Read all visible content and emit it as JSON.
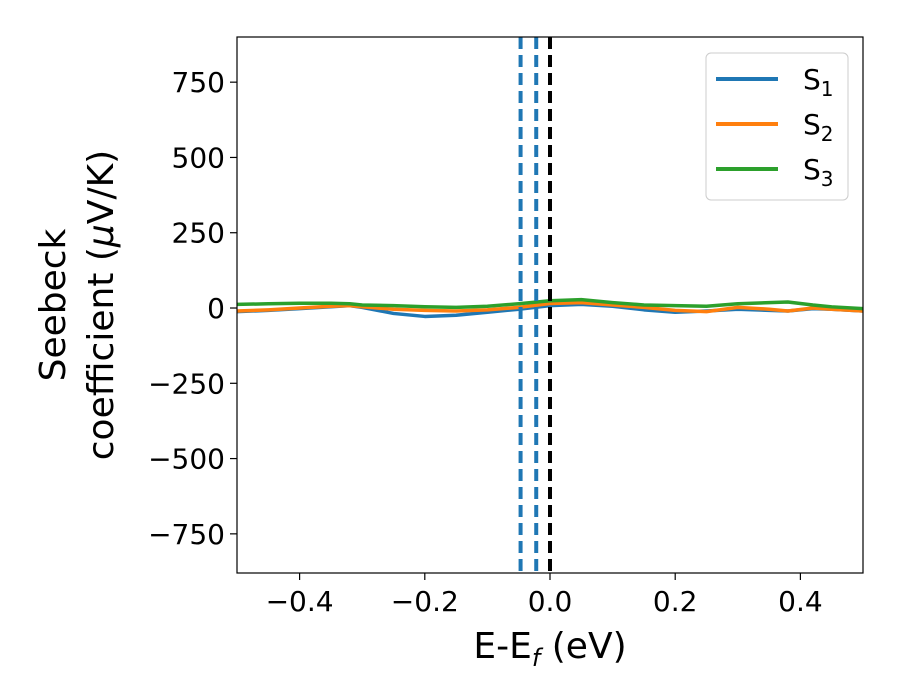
{
  "chart_data": {
    "type": "line",
    "xlabel": {
      "main": "E-E",
      "sub": "f",
      "tail": " (eV)"
    },
    "ylabel": {
      "line1": "Seebeck",
      "line2_text": "coefficient  (",
      "line2_mu": "μ",
      "line2_tail": "V/K)"
    },
    "xlim": [
      -0.5,
      0.5
    ],
    "ylim": [
      -880,
      900
    ],
    "xticks": [
      -0.4,
      -0.2,
      0.0,
      0.2,
      0.4
    ],
    "xtick_labels": [
      "−0.4",
      "−0.2",
      "0.0",
      "0.2",
      "0.4"
    ],
    "yticks": [
      -750,
      -500,
      -250,
      0,
      250,
      500,
      750
    ],
    "ytick_labels": [
      "−750",
      "−500",
      "−250",
      "0",
      "250",
      "500",
      "750"
    ],
    "grid": false,
    "legend_position": "top-right",
    "series": [
      {
        "name": "S",
        "sub": "1",
        "color": "#1f77b4",
        "x": [
          -0.5,
          -0.45,
          -0.4,
          -0.35,
          -0.32,
          -0.3,
          -0.25,
          -0.2,
          -0.15,
          -0.1,
          -0.05,
          0.0,
          0.05,
          0.1,
          0.15,
          0.2,
          0.25,
          0.3,
          0.35,
          0.38,
          0.42,
          0.45,
          0.5
        ],
        "y": [
          -12,
          -8,
          -2,
          4,
          8,
          2,
          -18,
          -28,
          -24,
          -14,
          -4,
          8,
          12,
          6,
          -6,
          -14,
          -10,
          -4,
          -8,
          -10,
          -2,
          -4,
          -10
        ]
      },
      {
        "name": "S",
        "sub": "2",
        "color": "#ff7f0e",
        "x": [
          -0.5,
          -0.45,
          -0.4,
          -0.35,
          -0.32,
          -0.3,
          -0.25,
          -0.2,
          -0.15,
          -0.1,
          -0.05,
          0.0,
          0.05,
          0.1,
          0.15,
          0.2,
          0.25,
          0.3,
          0.35,
          0.38,
          0.42,
          0.45,
          0.5
        ],
        "y": [
          -10,
          -6,
          0,
          6,
          8,
          4,
          -4,
          -8,
          -10,
          -6,
          2,
          15,
          18,
          10,
          2,
          -8,
          -12,
          2,
          -4,
          -10,
          0,
          -4,
          -10
        ]
      },
      {
        "name": "S",
        "sub": "3",
        "color": "#2ca02c",
        "x": [
          -0.5,
          -0.45,
          -0.4,
          -0.35,
          -0.32,
          -0.3,
          -0.25,
          -0.2,
          -0.15,
          -0.1,
          -0.05,
          0.0,
          0.05,
          0.1,
          0.15,
          0.2,
          0.25,
          0.3,
          0.35,
          0.38,
          0.42,
          0.45,
          0.5
        ],
        "y": [
          12,
          14,
          16,
          16,
          14,
          10,
          8,
          4,
          2,
          6,
          14,
          24,
          28,
          18,
          10,
          8,
          6,
          14,
          18,
          20,
          10,
          4,
          -2
        ]
      }
    ],
    "vlines": [
      {
        "x": -0.047,
        "color": "#1f77b4",
        "style": "dashed"
      },
      {
        "x": -0.022,
        "color": "#1f77b4",
        "style": "dashed"
      },
      {
        "x": 0.0,
        "color": "#000000",
        "style": "dashed"
      }
    ]
  }
}
